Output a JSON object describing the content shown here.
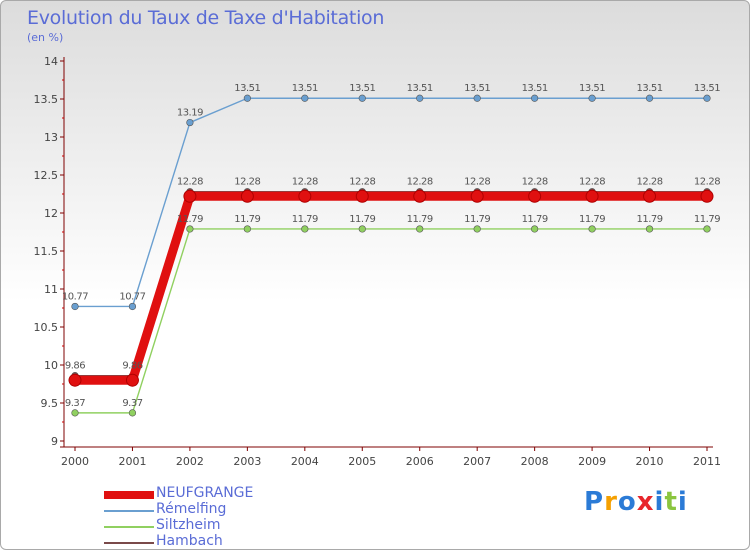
{
  "title": "Evolution du Taux de Taxe d'Habitation",
  "subtitle": "(en %)",
  "logo": {
    "text": "Proxiti",
    "letters": [
      "P",
      "r",
      "o",
      "x",
      "i",
      "t",
      "i"
    ],
    "colors": [
      "#2b7bd6",
      "#f5a000",
      "#2b7bd6",
      "#e8262c",
      "#2b7bd6",
      "#8bc53f",
      "#2b7bd6"
    ]
  },
  "chart_data": {
    "type": "line",
    "title": "Evolution du Taux de Taxe d'Habitation",
    "ylabel": "(en %)",
    "xlabel": "",
    "categories": [
      "2000",
      "2001",
      "2002",
      "2003",
      "2004",
      "2005",
      "2006",
      "2007",
      "2008",
      "2009",
      "2010",
      "2011"
    ],
    "ylim": [
      9,
      14
    ],
    "yticks": [
      9,
      9.5,
      10,
      10.5,
      11,
      11.5,
      12,
      12.5,
      13,
      13.5,
      14
    ],
    "ytick_labels": [
      "9",
      "9.5",
      "10",
      "10.5",
      "11",
      "11.5",
      "12",
      "12.5",
      "13",
      "13.5",
      "14"
    ],
    "grid": false,
    "legend_position": "bottom-left",
    "series": [
      {
        "name": "NEUFGRANGE",
        "color": "#e01010",
        "values": [
          9.8,
          9.8,
          12.22,
          12.22,
          12.22,
          12.22,
          12.22,
          12.22,
          12.22,
          12.22,
          12.22,
          12.22
        ],
        "labels": [
          "9.80",
          "9.80",
          "12.22",
          "12.22",
          "12.22",
          "12.22",
          "12.22",
          "12.22",
          "12.22",
          "12.22",
          "12.22",
          "12.22"
        ],
        "show_labels": false
      },
      {
        "name": "Rémelfing",
        "color": "#6a9fd0",
        "values": [
          10.77,
          10.77,
          13.19,
          13.51,
          13.51,
          13.51,
          13.51,
          13.51,
          13.51,
          13.51,
          13.51,
          13.51
        ],
        "labels": [
          "10.77",
          "10.77",
          "13.19",
          "13.51",
          "13.51",
          "13.51",
          "13.51",
          "13.51",
          "13.51",
          "13.51",
          "13.51",
          "13.51"
        ],
        "show_labels": true
      },
      {
        "name": "Siltzheim",
        "color": "#90d060",
        "values": [
          9.37,
          9.37,
          11.79,
          11.79,
          11.79,
          11.79,
          11.79,
          11.79,
          11.79,
          11.79,
          11.79,
          11.79
        ],
        "labels": [
          "9.37",
          "9.37",
          "11.79",
          "11.79",
          "11.79",
          "11.79",
          "11.79",
          "11.79",
          "11.79",
          "11.79",
          "11.79",
          "11.79"
        ],
        "show_labels": true
      },
      {
        "name": "Hambach",
        "color": "#7a4a4a",
        "values": [
          9.86,
          9.86,
          12.28,
          12.28,
          12.28,
          12.28,
          12.28,
          12.28,
          12.28,
          12.28,
          12.28,
          12.28
        ],
        "labels": [
          "9.86",
          "9.86",
          "12.28",
          "12.28",
          "12.28",
          "12.28",
          "12.28",
          "12.28",
          "12.28",
          "12.28",
          "12.28",
          "12.28"
        ],
        "show_labels": true
      }
    ]
  }
}
